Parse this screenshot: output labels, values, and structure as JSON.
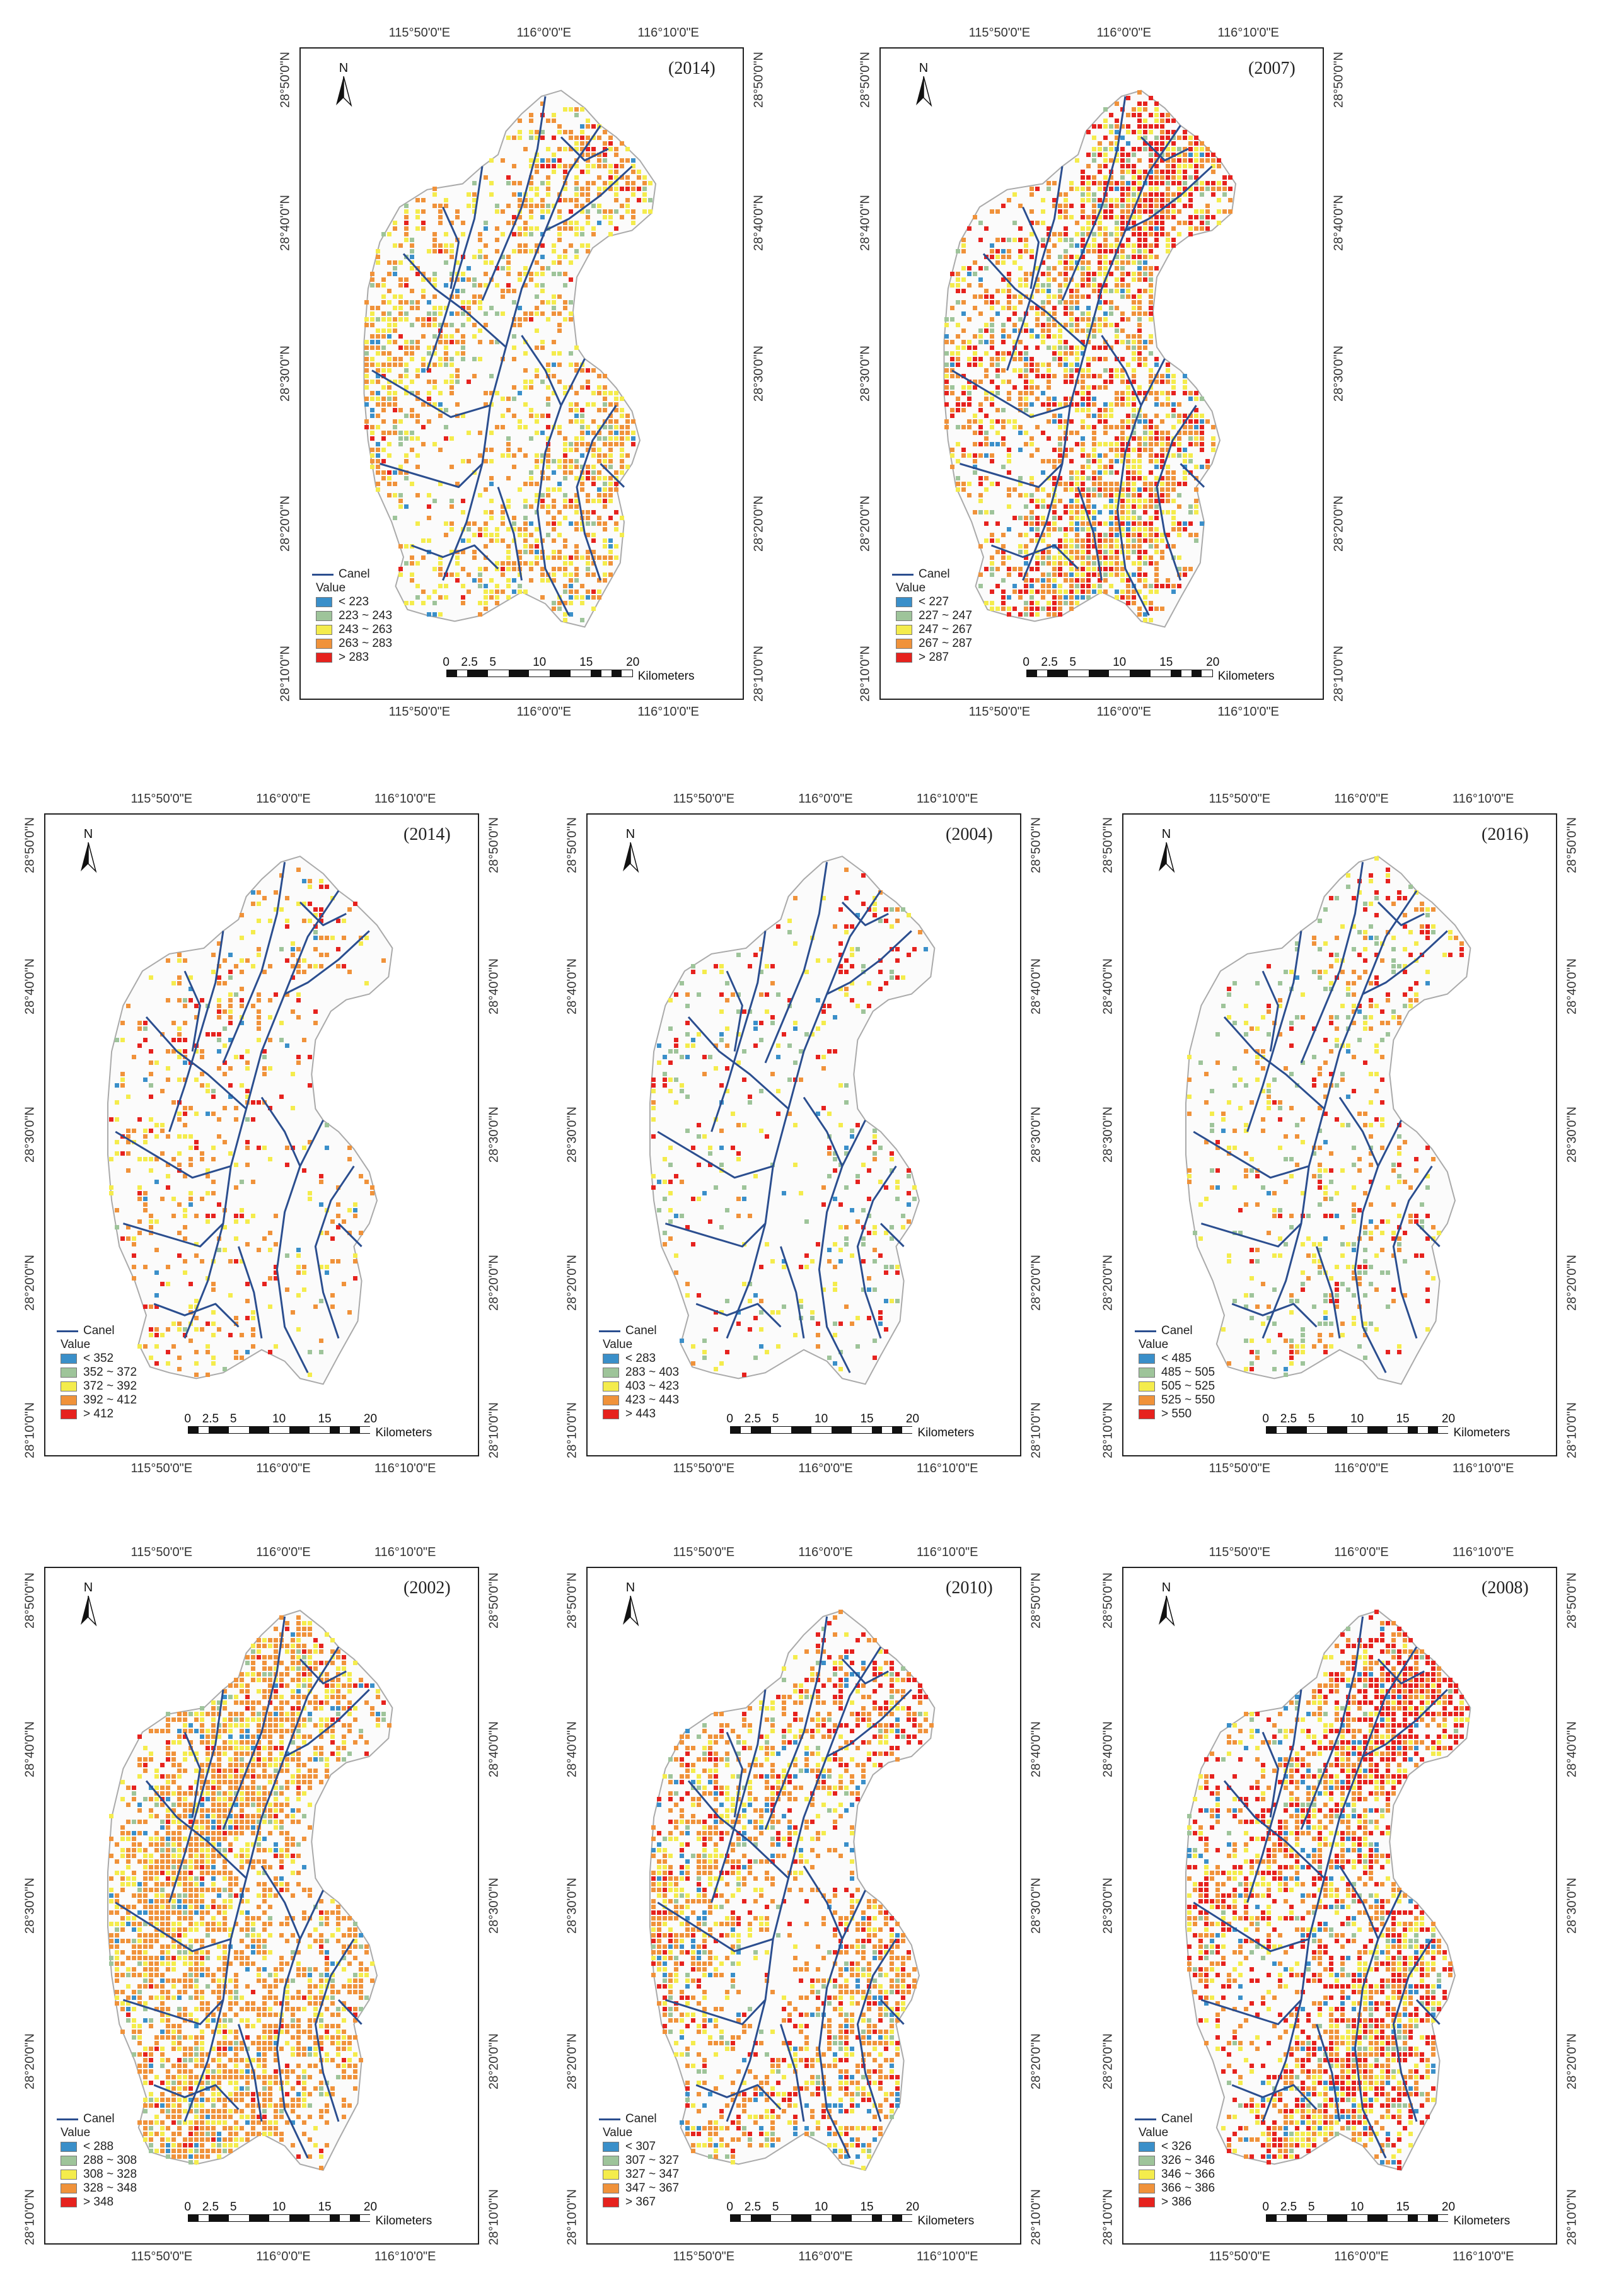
{
  "map_common": {
    "north_label": "N",
    "legend_canel": "Canel",
    "legend_value_title": "Value",
    "scale_numbers": [
      "0",
      "2.5",
      "5",
      "10",
      "15",
      "20"
    ],
    "scale_unit": "Kilometers",
    "lon_labels": [
      "115°50'0\"E",
      "116°0'0\"E",
      "116°10'0\"E"
    ],
    "lat_labels": [
      "28°50'0\"N",
      "28°40'0\"N",
      "28°30'0\"N",
      "28°20'0\"N",
      "28°10'0\"N"
    ],
    "class_colors": [
      "#3a8fc9",
      "#9ec49a",
      "#f4ec4c",
      "#f0923a",
      "#e6221e"
    ],
    "canel_color": "#2b4e8f"
  },
  "panels": [
    {
      "year": "(2014)",
      "legend": [
        "< 223",
        "223 ~ 243",
        "243 ~ 263",
        "263 ~ 283",
        "> 283"
      ]
    },
    {
      "year": "(2007)",
      "legend": [
        "< 227",
        "227 ~ 247",
        "247 ~ 267",
        "267 ~ 287",
        "> 287"
      ]
    },
    {
      "year": "(2014)",
      "legend": [
        "< 352",
        "352 ~ 372",
        "372 ~ 392",
        "392 ~ 412",
        "> 412"
      ]
    },
    {
      "year": "(2004)",
      "legend": [
        "< 283",
        "283 ~ 403",
        "403 ~ 423",
        "423 ~ 443",
        "> 443"
      ]
    },
    {
      "year": "(2016)",
      "legend": [
        "< 485",
        "485 ~ 505",
        "505 ~ 525",
        "525 ~ 550",
        "> 550"
      ]
    },
    {
      "year": "(2002)",
      "legend": [
        "< 288",
        "288 ~ 308",
        "308 ~ 328",
        "328 ~ 348",
        "> 348"
      ]
    },
    {
      "year": "(2010)",
      "legend": [
        "< 307",
        "307 ~ 327",
        "327 ~ 347",
        "347 ~ 367",
        "> 367"
      ]
    },
    {
      "year": "(2008)",
      "legend": [
        "< 326",
        "326 ~ 346",
        "346 ~ 366",
        "366 ~ 386",
        "> 386"
      ]
    }
  ]
}
